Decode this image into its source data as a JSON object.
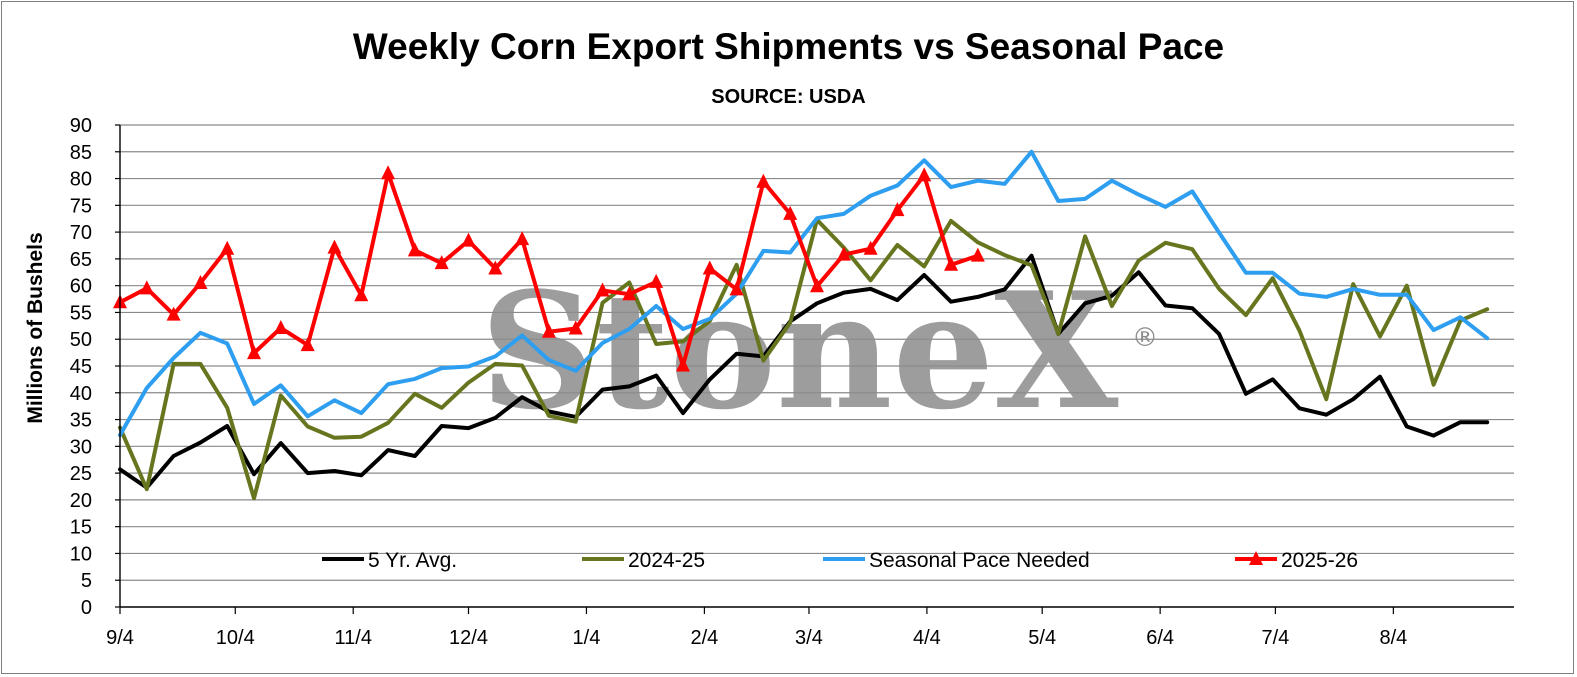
{
  "chart_data": {
    "type": "line",
    "title": "Weekly Corn Export Shipments vs Seasonal Pace",
    "subtitle": "SOURCE: USDA",
    "ylabel": "Millions of Bushels",
    "xlabel": "",
    "ylim": [
      0,
      90
    ],
    "ytick_step": 5,
    "grid": "horizontal",
    "legend_position": "bottom-inside",
    "watermark": "StoneX",
    "watermark_symbol": "®",
    "x_tick_labels": [
      "9/4",
      "10/4",
      "11/4",
      "12/4",
      "1/4",
      "2/4",
      "3/4",
      "4/4",
      "5/4",
      "6/4",
      "7/4",
      "8/4"
    ],
    "x_tick_week_index": [
      0,
      4.3,
      8.7,
      13,
      17.4,
      21.8,
      25.7,
      30.1,
      34.4,
      38.8,
      43.1,
      47.5
    ],
    "weeks": 53,
    "series": [
      {
        "name": "5 Yr. Avg.",
        "color": "#000000",
        "marker": "none",
        "values": [
          25.7,
          22.3,
          28.2,
          30.7,
          33.8,
          24.8,
          30.6,
          25.0,
          25.4,
          24.6,
          29.3,
          28.2,
          33.8,
          33.4,
          35.3,
          39.2,
          36.5,
          35.5,
          40.6,
          41.2,
          43.2,
          36.2,
          42.5,
          47.3,
          46.8,
          53.3,
          56.7,
          58.7,
          59.4,
          57.3,
          62.0,
          57.0,
          57.9,
          59.3,
          65.6,
          51.0,
          56.7,
          58.1,
          62.5,
          56.3,
          55.8,
          51.0,
          39.8,
          42.5,
          37.1,
          35.9,
          38.8,
          43.0,
          33.7,
          32.0,
          34.5,
          34.5
        ]
      },
      {
        "name": "2024-25",
        "color": "#66761e",
        "marker": "none",
        "values": [
          33.5,
          22.0,
          45.4,
          45.4,
          37.2,
          20.3,
          39.5,
          33.7,
          31.6,
          31.8,
          34.4,
          39.8,
          37.2,
          41.9,
          45.4,
          45.1,
          35.7,
          34.6,
          56.8,
          60.6,
          49.1,
          49.6,
          53.4,
          63.9,
          46.0,
          53.1,
          72.3,
          67.1,
          61.0,
          67.6,
          63.6,
          72.1,
          68.1,
          65.7,
          63.8,
          51.0,
          69.2,
          56.2,
          64.7,
          68.0,
          66.8,
          59.4,
          54.5,
          61.4,
          51.6,
          38.8,
          60.3,
          50.5,
          60.0,
          41.5,
          53.5,
          55.6
        ]
      },
      {
        "name": "Seasonal Pace Needed",
        "color": "#2e9ef0",
        "marker": "none",
        "values": [
          32.1,
          40.9,
          46.5,
          51.2,
          49.2,
          37.9,
          41.4,
          35.6,
          38.6,
          36.2,
          41.6,
          42.6,
          44.6,
          44.9,
          46.8,
          50.7,
          46.1,
          44.1,
          49.3,
          51.9,
          56.2,
          51.9,
          53.8,
          58.5,
          66.5,
          66.2,
          72.6,
          73.4,
          76.8,
          78.7,
          83.4,
          78.4,
          79.6,
          79.0,
          85.0,
          75.8,
          76.2,
          79.6,
          77.0,
          74.7,
          77.6,
          69.9,
          62.4,
          62.4,
          58.5,
          57.9,
          59.4,
          58.3,
          58.3,
          51.7,
          54.1,
          50.2
        ]
      },
      {
        "name": "2025-26",
        "color": "#ff0000",
        "marker": "triangle",
        "values": [
          56.9,
          59.5,
          54.6,
          60.5,
          66.9,
          47.4,
          52.1,
          48.9,
          67.1,
          58.2,
          81.0,
          66.6,
          64.2,
          68.4,
          63.2,
          68.7,
          51.4,
          52.0,
          59.1,
          58.4,
          60.7,
          45.1,
          63.2,
          59.3,
          79.4,
          73.4,
          59.9,
          65.8,
          66.9,
          74.1,
          80.6,
          63.9,
          65.6
        ]
      }
    ]
  }
}
